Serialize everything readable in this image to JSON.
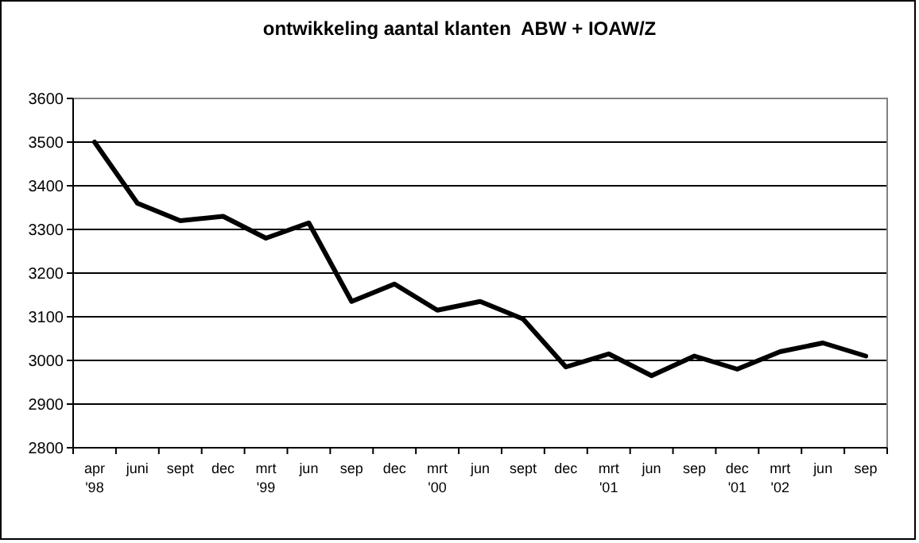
{
  "chart_data": {
    "type": "line",
    "title": "ontwikkeling aantal klanten  ABW + IOAW/Z",
    "categories": [
      "apr\n'98",
      "juni",
      "sept",
      "dec",
      "mrt\n'99",
      "jun",
      "sep",
      "dec",
      "mrt\n'00",
      "jun",
      "sept",
      "dec",
      "mrt\n'01",
      "jun",
      "sep",
      "dec\n'01",
      "mrt\n'02",
      "jun",
      "sep"
    ],
    "series": [
      {
        "color": "#000000",
        "values": [
          3500,
          3360,
          3320,
          3330,
          3280,
          3315,
          3135,
          3175,
          3115,
          3135,
          3095,
          2985,
          3015,
          2965,
          3010,
          2980,
          3020,
          3040,
          3010
        ]
      }
    ],
    "ylim": [
      2800,
      3600
    ],
    "yticks": [
      2800,
      2900,
      3000,
      3100,
      3200,
      3300,
      3400,
      3500,
      3600
    ],
    "grid": "y",
    "marker": "none",
    "line_style": "solid"
  }
}
